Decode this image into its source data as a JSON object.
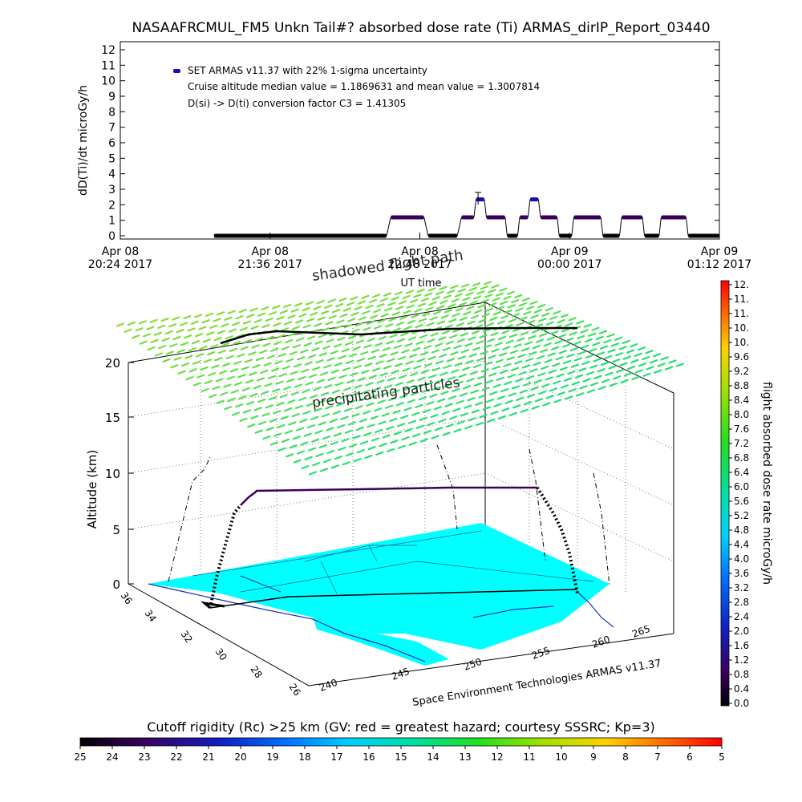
{
  "title": "NASAAFRCMUL_FM5 Unkn Tail#? absorbed dose rate (Ti) ARMAS_dirIP_Report_03440",
  "chart_data": [
    {
      "type": "scatter",
      "ylabel": "dD(Ti)/dt microGy/h",
      "xlabel": "UT time",
      "ylim": [
        0,
        12
      ],
      "yticks": [
        "0",
        "1",
        "2",
        "3",
        "4",
        "5",
        "6",
        "7",
        "8",
        "9",
        "10",
        "11",
        "12"
      ],
      "xticks": [
        {
          "top": "Apr 08",
          "bottom": "20:24 2017"
        },
        {
          "top": "Apr 08",
          "bottom": "21:36 2017"
        },
        {
          "top": "Apr 08",
          "bottom": "22:48 2017"
        },
        {
          "top": "Apr 09",
          "bottom": "00:00 2017"
        },
        {
          "top": "Apr 09",
          "bottom": "01:12 2017"
        }
      ],
      "xlim_minutes": [
        0,
        288
      ],
      "legend": {
        "marker_color": "#1010c0",
        "lines": [
          "SET ARMAS v11.37 with 22% 1-sigma uncertainty",
          "Cruise altitude median value = 1.1869631 and mean value = 1.3007814",
          "D(si) -> D(ti) conversion factor C3 = 1.41305"
        ]
      },
      "segments": [
        {
          "t0": 45,
          "t1": 128,
          "y": 0.0
        },
        {
          "t0": 130,
          "t1": 146,
          "y": 1.19
        },
        {
          "t0": 148,
          "t1": 162,
          "y": 0.0
        },
        {
          "t0": 164,
          "t1": 170,
          "y": 1.19
        },
        {
          "t0": 171,
          "t1": 175,
          "y": 2.35
        },
        {
          "t0": 176,
          "t1": 185,
          "y": 1.19
        },
        {
          "t0": 186,
          "t1": 191,
          "y": 0.0
        },
        {
          "t0": 192,
          "t1": 196,
          "y": 1.19
        },
        {
          "t0": 197,
          "t1": 201,
          "y": 2.35
        },
        {
          "t0": 202,
          "t1": 210,
          "y": 1.19
        },
        {
          "t0": 211,
          "t1": 217,
          "y": 0.0
        },
        {
          "t0": 218,
          "t1": 231,
          "y": 1.19
        },
        {
          "t0": 232,
          "t1": 240,
          "y": 0.0
        },
        {
          "t0": 241,
          "t1": 251,
          "y": 1.19
        },
        {
          "t0": 252,
          "t1": 259,
          "y": 0.0
        },
        {
          "t0": 260,
          "t1": 272,
          "y": 1.19
        },
        {
          "t0": 273,
          "t1": 288,
          "y": 0.0
        }
      ],
      "errorbar": {
        "t": 172,
        "low": 2.0,
        "high": 2.8
      }
    },
    {
      "type": "3d-surface",
      "zlabel": "Altitude (km)",
      "zticks": [
        "0",
        "5",
        "10",
        "15",
        "20"
      ],
      "zlim": [
        0,
        20
      ],
      "lat_ticks": [
        "36",
        "34",
        "32",
        "30",
        "28",
        "26"
      ],
      "lon_ticks": [
        "240",
        "245",
        "250",
        "255",
        "260",
        "265"
      ],
      "labels": {
        "shadowed": "shadowed flight path",
        "precip": "precipitating particles",
        "credit": "Space Environment Technologies ARMAS v11.37"
      },
      "colors": {
        "surface": "#00ffff",
        "layer_top": "#88e030",
        "layer_bottom": "#20e070",
        "coast": "#1030c0"
      }
    },
    {
      "type": "colorbar",
      "orientation": "vertical",
      "label": "flight absorbed dose rate microGy/h",
      "ticks": [
        "12.",
        "11.",
        "11.",
        "10.",
        "10.",
        "9.6",
        "9.2",
        "8.8",
        "8.4",
        "8.0",
        "7.6",
        "7.2",
        "6.8",
        "6.4",
        "6.0",
        "5.6",
        "5.2",
        "4.8",
        "4.4",
        "4.0",
        "3.6",
        "3.2",
        "2.8",
        "2.4",
        "2.0",
        "1.6",
        "1.2",
        "0.8",
        "0.4",
        "0.0"
      ],
      "range": [
        0,
        12
      ]
    },
    {
      "type": "colorbar",
      "orientation": "horizontal",
      "label": "Cutoff rigidity (Rc) >25 km (GV: red = greatest hazard; courtesy SSSRC; Kp=3)",
      "ticks": [
        "25",
        "24",
        "23",
        "22",
        "21",
        "20",
        "19",
        "18",
        "17",
        "16",
        "15",
        "14",
        "13",
        "12",
        "11",
        "10",
        "9",
        "8",
        "7",
        "6",
        "5"
      ],
      "range": [
        25,
        5
      ]
    }
  ]
}
